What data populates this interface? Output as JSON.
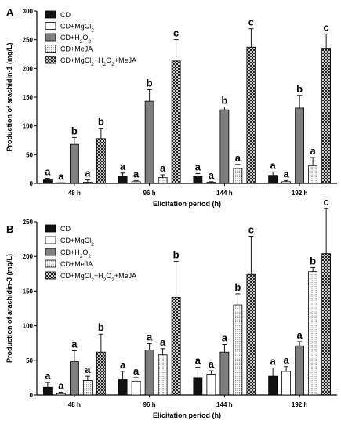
{
  "chart_data": [
    {
      "type": "bar",
      "panel_label": "A",
      "xlabel": "Elicitation period (h)",
      "ylabel": "Production of arachidin-1 (mg/L)",
      "ylim": [
        0,
        300
      ],
      "yticks": [
        0,
        50,
        100,
        150,
        200,
        250,
        300
      ],
      "categories": [
        "48 h",
        "96 h",
        "144 h",
        "192 h"
      ],
      "legend": "top-left",
      "series": [
        {
          "name": "CD",
          "values": [
            6,
            13,
            12,
            14
          ],
          "errors": [
            3,
            5,
            5,
            6
          ],
          "letters": [
            "a",
            "a",
            "a",
            "a"
          ]
        },
        {
          "name": "CD+MgCl",
          "sub": "2",
          "values": [
            0.5,
            3,
            2,
            3
          ],
          "errors": [
            0.5,
            2,
            1,
            2
          ],
          "letters": [
            "a",
            "a",
            "a",
            "a"
          ]
        },
        {
          "name": "CD+H",
          "sub": "2",
          "name2": "O",
          "sub2": "2",
          "values": [
            68,
            143,
            128,
            131
          ],
          "errors": [
            12,
            20,
            5,
            22
          ],
          "letters": [
            "b",
            "b",
            "b",
            "b"
          ]
        },
        {
          "name": "CD+MeJA",
          "values": [
            2,
            10,
            26,
            31
          ],
          "errors": [
            4,
            5,
            7,
            14
          ],
          "letters": [
            "a",
            "a",
            "a",
            "a"
          ]
        },
        {
          "name": "CD+MgCl",
          "sub": "2",
          "name2": "+H",
          "sub2": "2",
          "name3": "O",
          "sub3": "2",
          "name4": "+MeJA",
          "values": [
            78,
            213,
            237,
            235
          ],
          "errors": [
            18,
            37,
            32,
            25
          ],
          "letters": [
            "b",
            "c",
            "c",
            "c"
          ]
        }
      ]
    },
    {
      "type": "bar",
      "panel_label": "B",
      "xlabel": "Elicitation period (h)",
      "ylabel": "Production of arachidin-3 (mg/L)",
      "ylim": [
        0,
        250
      ],
      "yticks": [
        0,
        50,
        100,
        150,
        200,
        250
      ],
      "categories": [
        "48 h",
        "96 h",
        "144 h",
        "192 h"
      ],
      "legend": "top-left",
      "series": [
        {
          "name": "CD",
          "values": [
            11,
            22,
            25,
            27
          ],
          "errors": [
            7,
            12,
            15,
            12
          ],
          "letters": [
            "a",
            "a",
            "a",
            "a"
          ]
        },
        {
          "name": "CD+MgCl",
          "sub": "2",
          "values": [
            2,
            20,
            30,
            34
          ],
          "errors": [
            2,
            5,
            5,
            7
          ],
          "letters": [
            "a",
            "a",
            "a",
            "a"
          ]
        },
        {
          "name": "CD+H",
          "sub": "2",
          "name2": "O",
          "sub2": "2",
          "values": [
            48,
            65,
            62,
            71
          ],
          "errors": [
            16,
            9,
            11,
            6
          ],
          "letters": [
            "a",
            "a",
            "a",
            "a"
          ]
        },
        {
          "name": "CD+MeJA",
          "values": [
            21,
            58,
            130,
            178
          ],
          "errors": [
            6,
            9,
            16,
            6
          ],
          "letters": [
            "a",
            "a",
            "b",
            "b"
          ]
        },
        {
          "name": "CD+MgCl",
          "sub": "2",
          "name2": "+H",
          "sub2": "2",
          "name3": "O",
          "sub3": "2",
          "name4": "+MeJA",
          "values": [
            62,
            141,
            174,
            204
          ],
          "errors": [
            26,
            52,
            55,
            65
          ],
          "letters": [
            "b",
            "b",
            "c",
            "c"
          ]
        }
      ]
    }
  ]
}
